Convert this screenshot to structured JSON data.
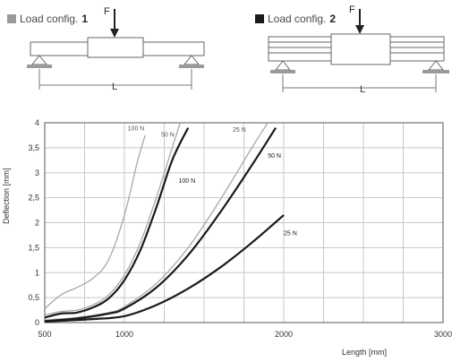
{
  "configs": [
    {
      "label": "Load config.",
      "number": "1",
      "swatch_color": "#9a9a9a",
      "force": "F",
      "length": "L"
    },
    {
      "label": "Load config.",
      "number": "2",
      "swatch_color": "#1a1a1a",
      "force": "F",
      "length": "L"
    }
  ],
  "chart_data": {
    "type": "line",
    "title": "",
    "xlabel": "Length [mm]",
    "ylabel": "Deflection [mm]",
    "xlim": [
      500,
      3000
    ],
    "ylim": [
      0,
      4
    ],
    "grid": true,
    "x_ticks": [
      500,
      1000,
      2000,
      3000
    ],
    "y_ticks": [
      "0",
      "0,5",
      "1",
      "1,5",
      "2",
      "2,5",
      "3",
      "3,5",
      "4"
    ],
    "series": [
      {
        "name": "100 N",
        "config": "1",
        "color": "#a8a8a8",
        "points": [
          [
            500,
            0.28
          ],
          [
            600,
            0.55
          ],
          [
            700,
            0.7
          ],
          [
            800,
            0.88
          ],
          [
            900,
            1.25
          ],
          [
            1000,
            2.15
          ],
          [
            1080,
            3.2
          ],
          [
            1130,
            3.75
          ]
        ]
      },
      {
        "name": "50 N",
        "config": "1",
        "color": "#a8a8a8",
        "points": [
          [
            500,
            0.15
          ],
          [
            600,
            0.22
          ],
          [
            700,
            0.25
          ],
          [
            800,
            0.35
          ],
          [
            900,
            0.55
          ],
          [
            1000,
            0.95
          ],
          [
            1100,
            1.6
          ],
          [
            1200,
            2.5
          ],
          [
            1300,
            3.5
          ],
          [
            1350,
            4.0
          ]
        ]
      },
      {
        "name": "100 N",
        "config": "2",
        "color": "#1a1a1a",
        "points": [
          [
            500,
            0.1
          ],
          [
            600,
            0.18
          ],
          [
            700,
            0.2
          ],
          [
            800,
            0.3
          ],
          [
            900,
            0.48
          ],
          [
            1000,
            0.85
          ],
          [
            1100,
            1.45
          ],
          [
            1200,
            2.3
          ],
          [
            1300,
            3.25
          ],
          [
            1400,
            3.9
          ]
        ]
      },
      {
        "name": "25 N",
        "config": "1",
        "color": "#a8a8a8",
        "points": [
          [
            500,
            0.05
          ],
          [
            700,
            0.1
          ],
          [
            900,
            0.2
          ],
          [
            1000,
            0.32
          ],
          [
            1200,
            0.78
          ],
          [
            1400,
            1.5
          ],
          [
            1600,
            2.45
          ],
          [
            1800,
            3.5
          ],
          [
            1900,
            4.0
          ]
        ]
      },
      {
        "name": "50 N",
        "config": "2",
        "color": "#1a1a1a",
        "points": [
          [
            500,
            0.03
          ],
          [
            700,
            0.08
          ],
          [
            900,
            0.18
          ],
          [
            1000,
            0.28
          ],
          [
            1200,
            0.7
          ],
          [
            1400,
            1.35
          ],
          [
            1600,
            2.2
          ],
          [
            1800,
            3.15
          ],
          [
            1950,
            3.9
          ]
        ]
      },
      {
        "name": "25 N",
        "config": "2",
        "color": "#1a1a1a",
        "points": [
          [
            500,
            0.02
          ],
          [
            800,
            0.07
          ],
          [
            1000,
            0.13
          ],
          [
            1200,
            0.35
          ],
          [
            1400,
            0.68
          ],
          [
            1600,
            1.1
          ],
          [
            1800,
            1.6
          ],
          [
            2000,
            2.15
          ]
        ]
      }
    ],
    "annotations": [
      {
        "text": "100 N",
        "x": 1020,
        "y": 3.85,
        "color": "#555555"
      },
      {
        "text": "50 N",
        "x": 1230,
        "y": 3.72,
        "color": "#555555"
      },
      {
        "text": "100 N",
        "x": 1340,
        "y": 2.8,
        "color": "#1a1a1a"
      },
      {
        "text": "25 N",
        "x": 1680,
        "y": 3.82,
        "color": "#555555"
      },
      {
        "text": "50 N",
        "x": 1900,
        "y": 3.3,
        "color": "#1a1a1a"
      },
      {
        "text": "25 N",
        "x": 2000,
        "y": 1.75,
        "color": "#1a1a1a"
      }
    ]
  }
}
